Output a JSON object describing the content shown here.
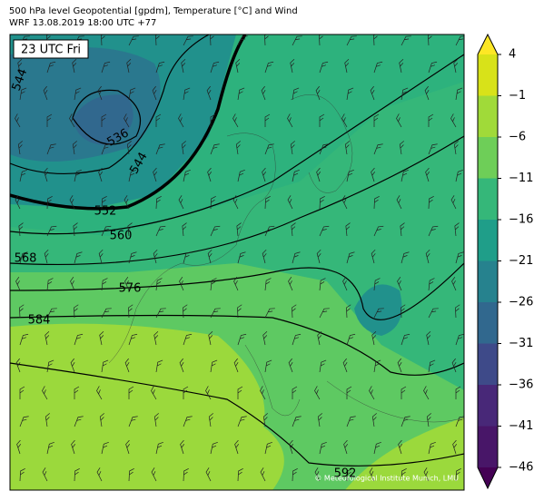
{
  "title_lines": [
    "500 hPa level Geopotential [gpdm], Temperature [°C] and Wind",
    "WRF 13.08.2019 18:00 UTC +77"
  ],
  "time_label": "23 UTC Fri",
  "contour_labels": [
    544,
    536,
    544,
    552,
    560,
    568,
    576,
    584,
    592
  ],
  "colorbar": {
    "ticks": [
      {
        "value": 4,
        "label": "4"
      },
      {
        "value": -1,
        "label": "−1"
      },
      {
        "value": -6,
        "label": "−6"
      },
      {
        "value": -11,
        "label": "−11"
      },
      {
        "value": -16,
        "label": "−16"
      },
      {
        "value": -21,
        "label": "−21"
      },
      {
        "value": -26,
        "label": "−26"
      },
      {
        "value": -31,
        "label": "−31"
      },
      {
        "value": -36,
        "label": "−36"
      },
      {
        "value": -41,
        "label": "−41"
      },
      {
        "value": -46,
        "label": "−46"
      }
    ],
    "colors": [
      "#d8e219",
      "#a0da39",
      "#6ece58",
      "#35b779",
      "#1f9e89",
      "#26828e",
      "#31688e",
      "#3e4a89",
      "#482878",
      "#481668"
    ],
    "extend_colors": [
      "#fde725",
      "#440154"
    ]
  },
  "credit": "© Meteorological Institute Munich, LMU"
}
